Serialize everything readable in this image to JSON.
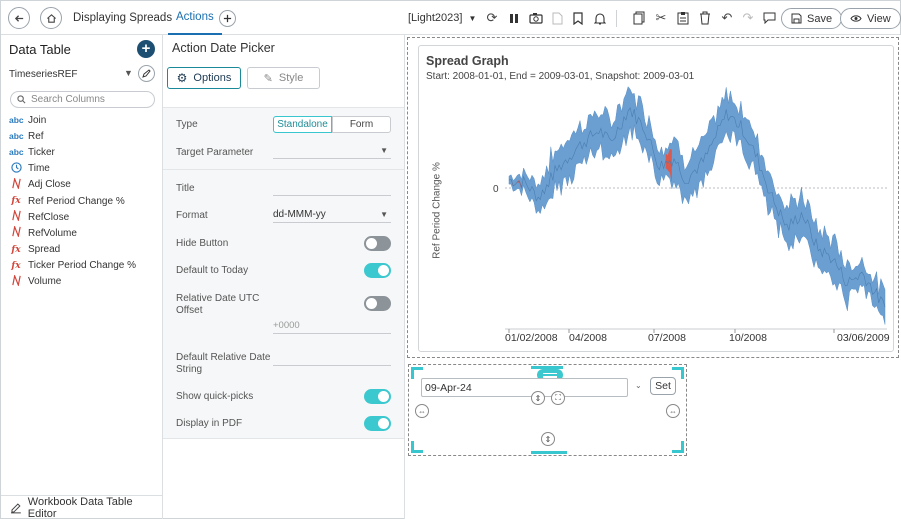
{
  "topbar": {
    "back_icon": "arrow-left-icon",
    "home_icon": "home-icon",
    "workbook_tab": "Displaying Spreads",
    "active_tab": "Actions",
    "add_tab_icon": "plus-icon",
    "theme_dropdown": "[Light2023]",
    "save_label": "Save",
    "view_label": "View"
  },
  "left_panel": {
    "title": "Data Table",
    "data_source": "TimeseriesREF",
    "search_placeholder": "Search Columns",
    "columns": [
      {
        "type": "abc",
        "name": "Join"
      },
      {
        "type": "abc",
        "name": "Ref"
      },
      {
        "type": "abc",
        "name": "Ticker"
      },
      {
        "type": "time",
        "name": "Time"
      },
      {
        "type": "num",
        "name": "Adj Close"
      },
      {
        "type": "fx",
        "name": "Ref Period Change %"
      },
      {
        "type": "num",
        "name": "RefClose"
      },
      {
        "type": "num",
        "name": "RefVolume"
      },
      {
        "type": "fx",
        "name": "Spread"
      },
      {
        "type": "fx",
        "name": "Ticker Period Change %"
      },
      {
        "type": "num",
        "name": "Volume"
      }
    ],
    "footer_label": "Workbook Data Table Editor"
  },
  "settings": {
    "title": "Action Date Picker",
    "options_tab": "Options",
    "style_tab": "Style",
    "type_label": "Type",
    "type_options": [
      "Standalone",
      "Form"
    ],
    "type_selected": "Standalone",
    "target_parameter_label": "Target Parameter",
    "target_parameter_value": "",
    "title_label": "Title",
    "title_value": "",
    "format_label": "Format",
    "format_value": "dd-MMM-yy",
    "hide_button_label": "Hide Button",
    "hide_button_on": false,
    "default_today_label": "Default to Today",
    "default_today_on": true,
    "utc_offset_label": "Relative Date UTC Offset",
    "utc_offset_on": false,
    "utc_offset_placeholder": "+0000",
    "default_relative_label": "Default Relative Date String",
    "default_relative_value": "",
    "quick_picks_label": "Show quick-picks",
    "quick_picks_on": true,
    "display_pdf_label": "Display in PDF",
    "display_pdf_on": true
  },
  "graph": {
    "title": "Spread Graph",
    "subtitle": "Start: 2008-01-01, End = 2009-03-01, Snapshot: 2009-03-01",
    "y_label": "Ref Period Change %",
    "zero_label": "0",
    "x_ticks": [
      "01/02/2008",
      "04/2008",
      "07/2008",
      "10/2008",
      "03/06/2009"
    ]
  },
  "picker": {
    "date_value": "09-Apr-24",
    "set_label": "Set"
  },
  "colors": {
    "accent_teal": "#3cc8cf",
    "spread_blue": "#6b9fd1",
    "spread_red": "#d95b4f",
    "primary_dark": "#1d4f73"
  }
}
